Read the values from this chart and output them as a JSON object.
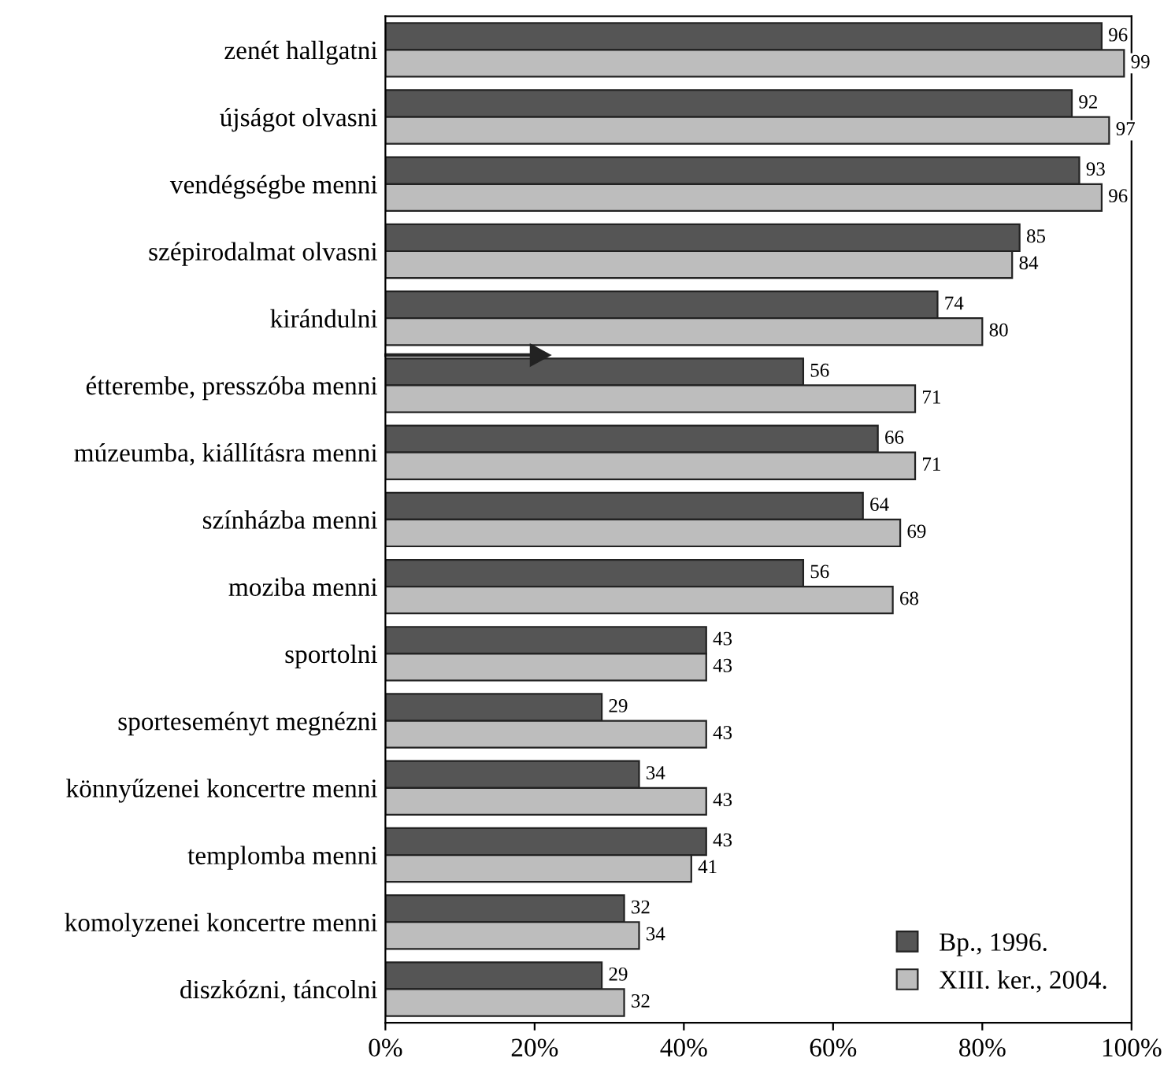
{
  "chart_data": {
    "type": "bar",
    "orientation": "horizontal",
    "data_labels": true,
    "legend": "bottom right",
    "xlim": [
      0,
      100
    ],
    "xticks": [
      {
        "value": 0,
        "label": "0%"
      },
      {
        "value": 20,
        "label": "20%"
      },
      {
        "value": 40,
        "label": "40%"
      },
      {
        "value": 60,
        "label": "60%"
      },
      {
        "value": 80,
        "label": "80%"
      },
      {
        "value": 100,
        "label": "100%"
      }
    ],
    "categories": [
      "zenét hallgatni",
      "újságot olvasni",
      "vendégségbe menni",
      "szépirodalmat olvasni",
      "kirándulni",
      "étterembe, presszóba menni",
      "múzeumba, kiállításra menni",
      "színházba menni",
      "moziba menni",
      "sportolni",
      "sporteseményt megnézni",
      "könnyűzenei koncertre menni",
      "templomba menni",
      "komolyzenei koncertre menni",
      "diszkózni, táncolni"
    ],
    "series": [
      {
        "name": "Bp., 1996.",
        "color": "#555555",
        "values": [
          96,
          92,
          93,
          85,
          74,
          56,
          66,
          64,
          56,
          43,
          29,
          34,
          43,
          32,
          29
        ]
      },
      {
        "name": "XIII. ker., 2004.",
        "color": "#bdbdbd",
        "values": [
          99,
          97,
          96,
          84,
          80,
          71,
          71,
          69,
          68,
          43,
          43,
          43,
          41,
          34,
          32
        ]
      }
    ]
  }
}
